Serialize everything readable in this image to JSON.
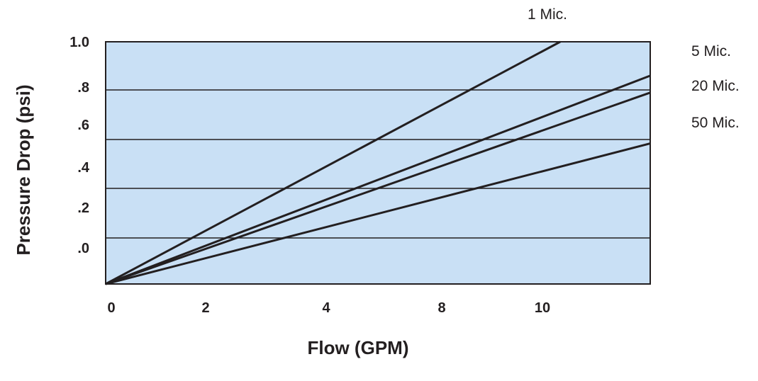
{
  "chart_data": {
    "type": "line",
    "title": "",
    "xlabel": "Flow (GPM)",
    "ylabel": "Pressure Drop (psi)",
    "x_ticks": [
      "0",
      "2",
      "4",
      "8",
      "10"
    ],
    "y_ticks": [
      "1.0",
      ".8",
      ".6",
      ".4",
      ".2",
      ".0"
    ],
    "xlim": [
      0,
      11.5
    ],
    "ylim": [
      0,
      1.0
    ],
    "grid": true,
    "plot_background": "#c9e0f5",
    "line_color": "#231f20",
    "series": [
      {
        "name": "1 Mic.",
        "x": [
          0,
          9.6
        ],
        "y": [
          0,
          1.0
        ]
      },
      {
        "name": "5 Mic.",
        "x": [
          0,
          11.5
        ],
        "y": [
          0,
          0.86
        ]
      },
      {
        "name": "20 Mic.",
        "x": [
          0,
          11.5
        ],
        "y": [
          0,
          0.79
        ]
      },
      {
        "name": "50 Mic.",
        "x": [
          0,
          11.5
        ],
        "y": [
          0,
          0.58
        ]
      }
    ]
  }
}
